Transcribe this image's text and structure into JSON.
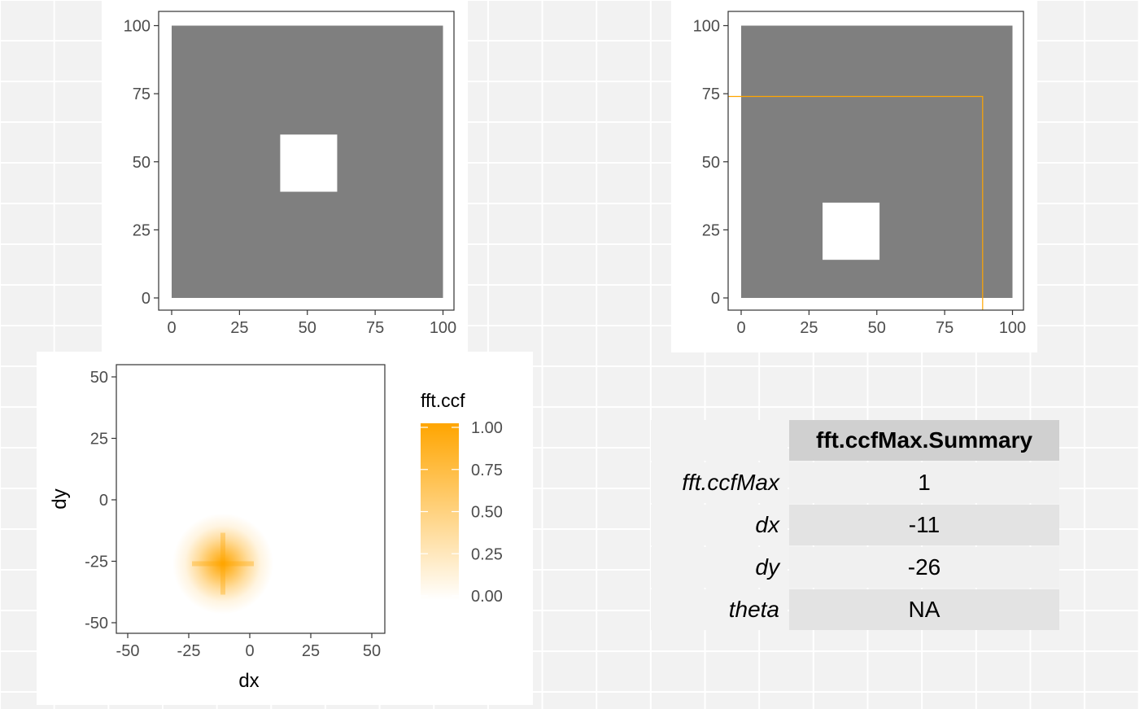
{
  "chart_data": [
    {
      "type": "heatmap",
      "name": "surface-1",
      "title": "",
      "xlabel": "",
      "ylabel": "",
      "xlim": [
        0,
        100
      ],
      "ylim": [
        0,
        100
      ],
      "x_ticks": [
        "0",
        "25",
        "50",
        "75",
        "100"
      ],
      "y_ticks": [
        "0",
        "25",
        "50",
        "75",
        "100"
      ],
      "fill_color": "#7f7f7f",
      "hole_color": "#ffffff",
      "white_square": {
        "x": [
          40,
          61
        ],
        "y": [
          39,
          60
        ]
      }
    },
    {
      "type": "heatmap",
      "name": "surface-2",
      "title": "",
      "xlabel": "",
      "ylabel": "",
      "xlim": [
        0,
        100
      ],
      "ylim": [
        0,
        100
      ],
      "x_ticks": [
        "0",
        "25",
        "50",
        "75",
        "100"
      ],
      "y_ticks": [
        "0",
        "25",
        "50",
        "75",
        "100"
      ],
      "fill_color": "#7f7f7f",
      "hole_color": "#ffffff",
      "white_square": {
        "x": [
          30,
          51
        ],
        "y": [
          14,
          35
        ]
      },
      "outline_color": "#ffa500",
      "outline": {
        "x": 89,
        "y": 74
      }
    },
    {
      "type": "heatmap",
      "name": "fft-ccf",
      "title": "",
      "xlabel": "dx",
      "ylabel": "dy",
      "xlim": [
        -55,
        55
      ],
      "ylim": [
        -55,
        55
      ],
      "x_ticks": [
        "-50",
        "-25",
        "0",
        "25",
        "50"
      ],
      "y_ticks": [
        "-50",
        "-25",
        "0",
        "25",
        "50"
      ],
      "peak": {
        "dx": -11,
        "dy": -26,
        "value": 1.0
      },
      "high_color": "#ffa500",
      "low_color": "#ffffff",
      "legend": {
        "title": "fft.ccf",
        "placement": "right",
        "labels": [
          "1.00",
          "0.75",
          "0.50",
          "0.25",
          "0.00"
        ]
      }
    }
  ],
  "summary": {
    "header": "fft.ccfMax.Summary",
    "rows": [
      {
        "label": "fft.ccfMax",
        "value": "1"
      },
      {
        "label": "dx",
        "value": "-11"
      },
      {
        "label": "dy",
        "value": "-26"
      },
      {
        "label": "theta",
        "value": "NA"
      }
    ]
  }
}
